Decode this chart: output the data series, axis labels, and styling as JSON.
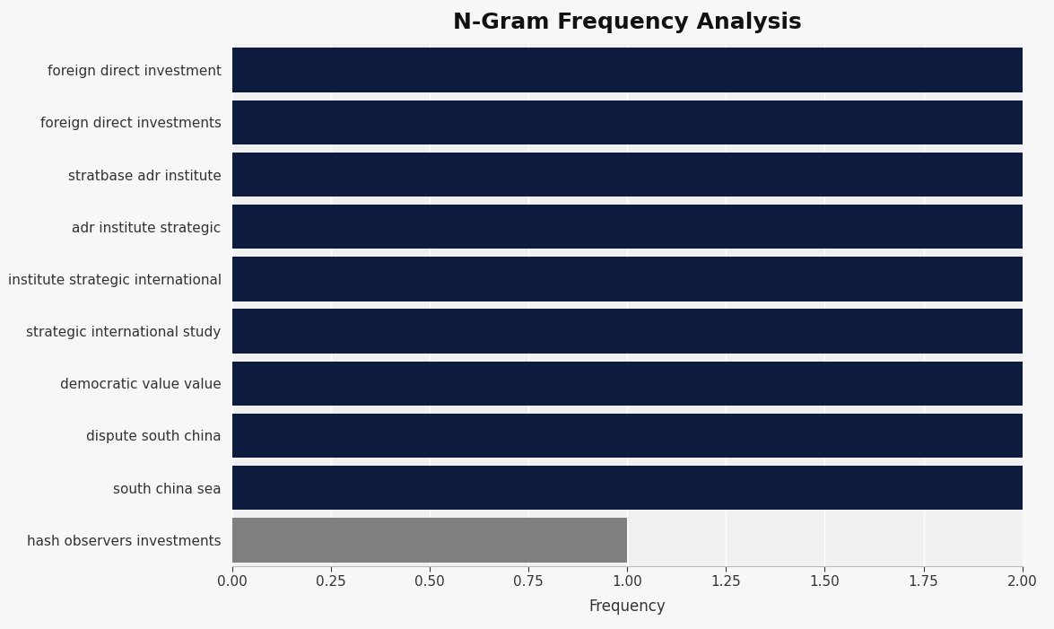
{
  "title": "N-Gram Frequency Analysis",
  "categories": [
    "hash observers investments",
    "south china sea",
    "dispute south china",
    "democratic value value",
    "strategic international study",
    "institute strategic international",
    "adr institute strategic",
    "stratbase adr institute",
    "foreign direct investments",
    "foreign direct investment"
  ],
  "values": [
    1,
    2,
    2,
    2,
    2,
    2,
    2,
    2,
    2,
    2
  ],
  "bar_colors": [
    "#7f7f7f",
    "#0d1b3e",
    "#0d1b3e",
    "#0d1b3e",
    "#0d1b3e",
    "#0d1b3e",
    "#0d1b3e",
    "#0d1b3e",
    "#0d1b3e",
    "#0d1b3e"
  ],
  "xlabel": "Frequency",
  "xlim": [
    0,
    2.0
  ],
  "xticks": [
    0.0,
    0.25,
    0.5,
    0.75,
    1.0,
    1.25,
    1.5,
    1.75,
    2.0
  ],
  "xtick_labels": [
    "0.00",
    "0.25",
    "0.50",
    "0.75",
    "1.00",
    "1.25",
    "1.50",
    "1.75",
    "2.00"
  ],
  "background_color": "#f7f7f7",
  "plot_bg_color": "#f0f0f0",
  "title_fontsize": 18,
  "label_fontsize": 11,
  "tick_fontsize": 11,
  "xlabel_fontsize": 12,
  "bar_height": 0.85
}
